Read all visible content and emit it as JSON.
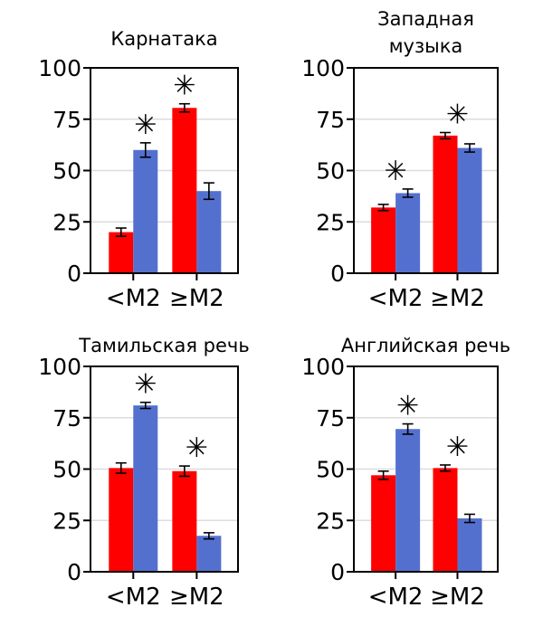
{
  "colors": {
    "red": "#ff0000",
    "blue": "#5470cf",
    "grid": "#dcdcdc"
  },
  "chart_data": [
    {
      "type": "bar",
      "title": [
        "Карнатака"
      ],
      "categories": [
        "<M2",
        "≥M2"
      ],
      "ylim": [
        0,
        100
      ],
      "yticks": [
        "0",
        "25",
        "50",
        "75",
        "100"
      ],
      "grid": true,
      "series": [
        {
          "color": "red",
          "values": [
            20,
            80.5
          ],
          "errors": [
            2,
            2
          ]
        },
        {
          "color": "blue",
          "values": [
            60,
            40
          ],
          "errors": [
            3.5,
            4
          ]
        }
      ],
      "significance": [
        "✳",
        "✳"
      ],
      "significance_on": [
        "blue",
        "red"
      ]
    },
    {
      "type": "bar",
      "title": [
        "Западная",
        "музыка"
      ],
      "categories": [
        "<M2",
        "≥M2"
      ],
      "ylim": [
        0,
        100
      ],
      "yticks": [
        "0",
        "25",
        "50",
        "75",
        "100"
      ],
      "grid": true,
      "series": [
        {
          "color": "red",
          "values": [
            32,
            67
          ],
          "errors": [
            1.5,
            1.5
          ]
        },
        {
          "color": "blue",
          "values": [
            39,
            61
          ],
          "errors": [
            2,
            2
          ]
        }
      ],
      "significance": [
        "✳",
        "✳"
      ],
      "significance_on": [
        "pair",
        "pair"
      ]
    },
    {
      "type": "bar",
      "title": [
        "Тамильская речь"
      ],
      "categories": [
        "<M2",
        "≥M2"
      ],
      "ylim": [
        0,
        100
      ],
      "yticks": [
        "0",
        "25",
        "50",
        "75",
        "100"
      ],
      "grid": true,
      "series": [
        {
          "color": "red",
          "values": [
            50.5,
            49
          ],
          "errors": [
            2.5,
            2.5
          ]
        },
        {
          "color": "blue",
          "values": [
            81,
            17.5
          ],
          "errors": [
            1.5,
            1.5
          ]
        }
      ],
      "significance": [
        "✳",
        "✳"
      ],
      "significance_on": [
        "blue",
        "pair"
      ]
    },
    {
      "type": "bar",
      "title": [
        "Английская речь"
      ],
      "categories": [
        "<M2",
        "≥M2"
      ],
      "ylim": [
        0,
        100
      ],
      "yticks": [
        "0",
        "25",
        "50",
        "75",
        "100"
      ],
      "grid": true,
      "series": [
        {
          "color": "red",
          "values": [
            47,
            50.5
          ],
          "errors": [
            2,
            1.5
          ]
        },
        {
          "color": "blue",
          "values": [
            69.5,
            26
          ],
          "errors": [
            2.5,
            2
          ]
        }
      ],
      "significance": [
        "✳",
        "✳"
      ],
      "significance_on": [
        "blue",
        "pair"
      ]
    }
  ]
}
